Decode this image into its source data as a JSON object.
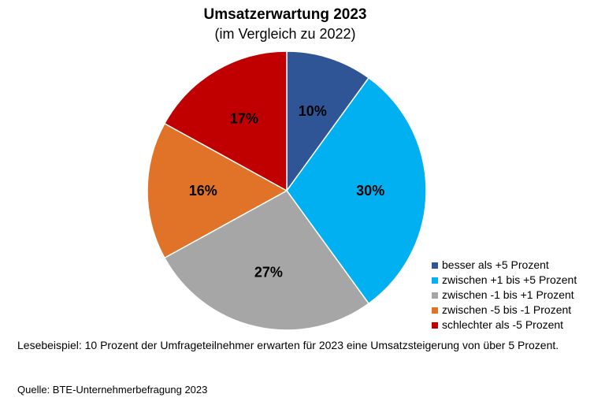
{
  "chart_data": {
    "type": "pie",
    "title": "Umsatzerwartung 2023",
    "subtitle": "(im Vergleich zu 2022)",
    "slices": [
      {
        "label": "besser als +5 Prozent",
        "value": 10,
        "display": "10%",
        "color": "#2f5597"
      },
      {
        "label": "zwischen +1 bis +5 Prozent",
        "value": 30,
        "display": "30%",
        "color": "#00b0f0"
      },
      {
        "label": "zwischen -1 bis +1 Prozent",
        "value": 27,
        "display": "27%",
        "color": "#a6a6a6"
      },
      {
        "label": "zwischen -5 bis -1 Prozent",
        "value": 16,
        "display": "16%",
        "color": "#e07328"
      },
      {
        "label": "schlechter als -5 Prozent",
        "value": 17,
        "display": "17%",
        "color": "#c00000"
      }
    ],
    "legend_position": "bottom-right"
  },
  "note": "Lesebeispiel: 10 Prozent der Umfrageteilnehmer erwarten für 2023 eine Umsatzsteigerung von über 5 Prozent.",
  "source": "Quelle: BTE-Unternehmerbefragung 2023"
}
